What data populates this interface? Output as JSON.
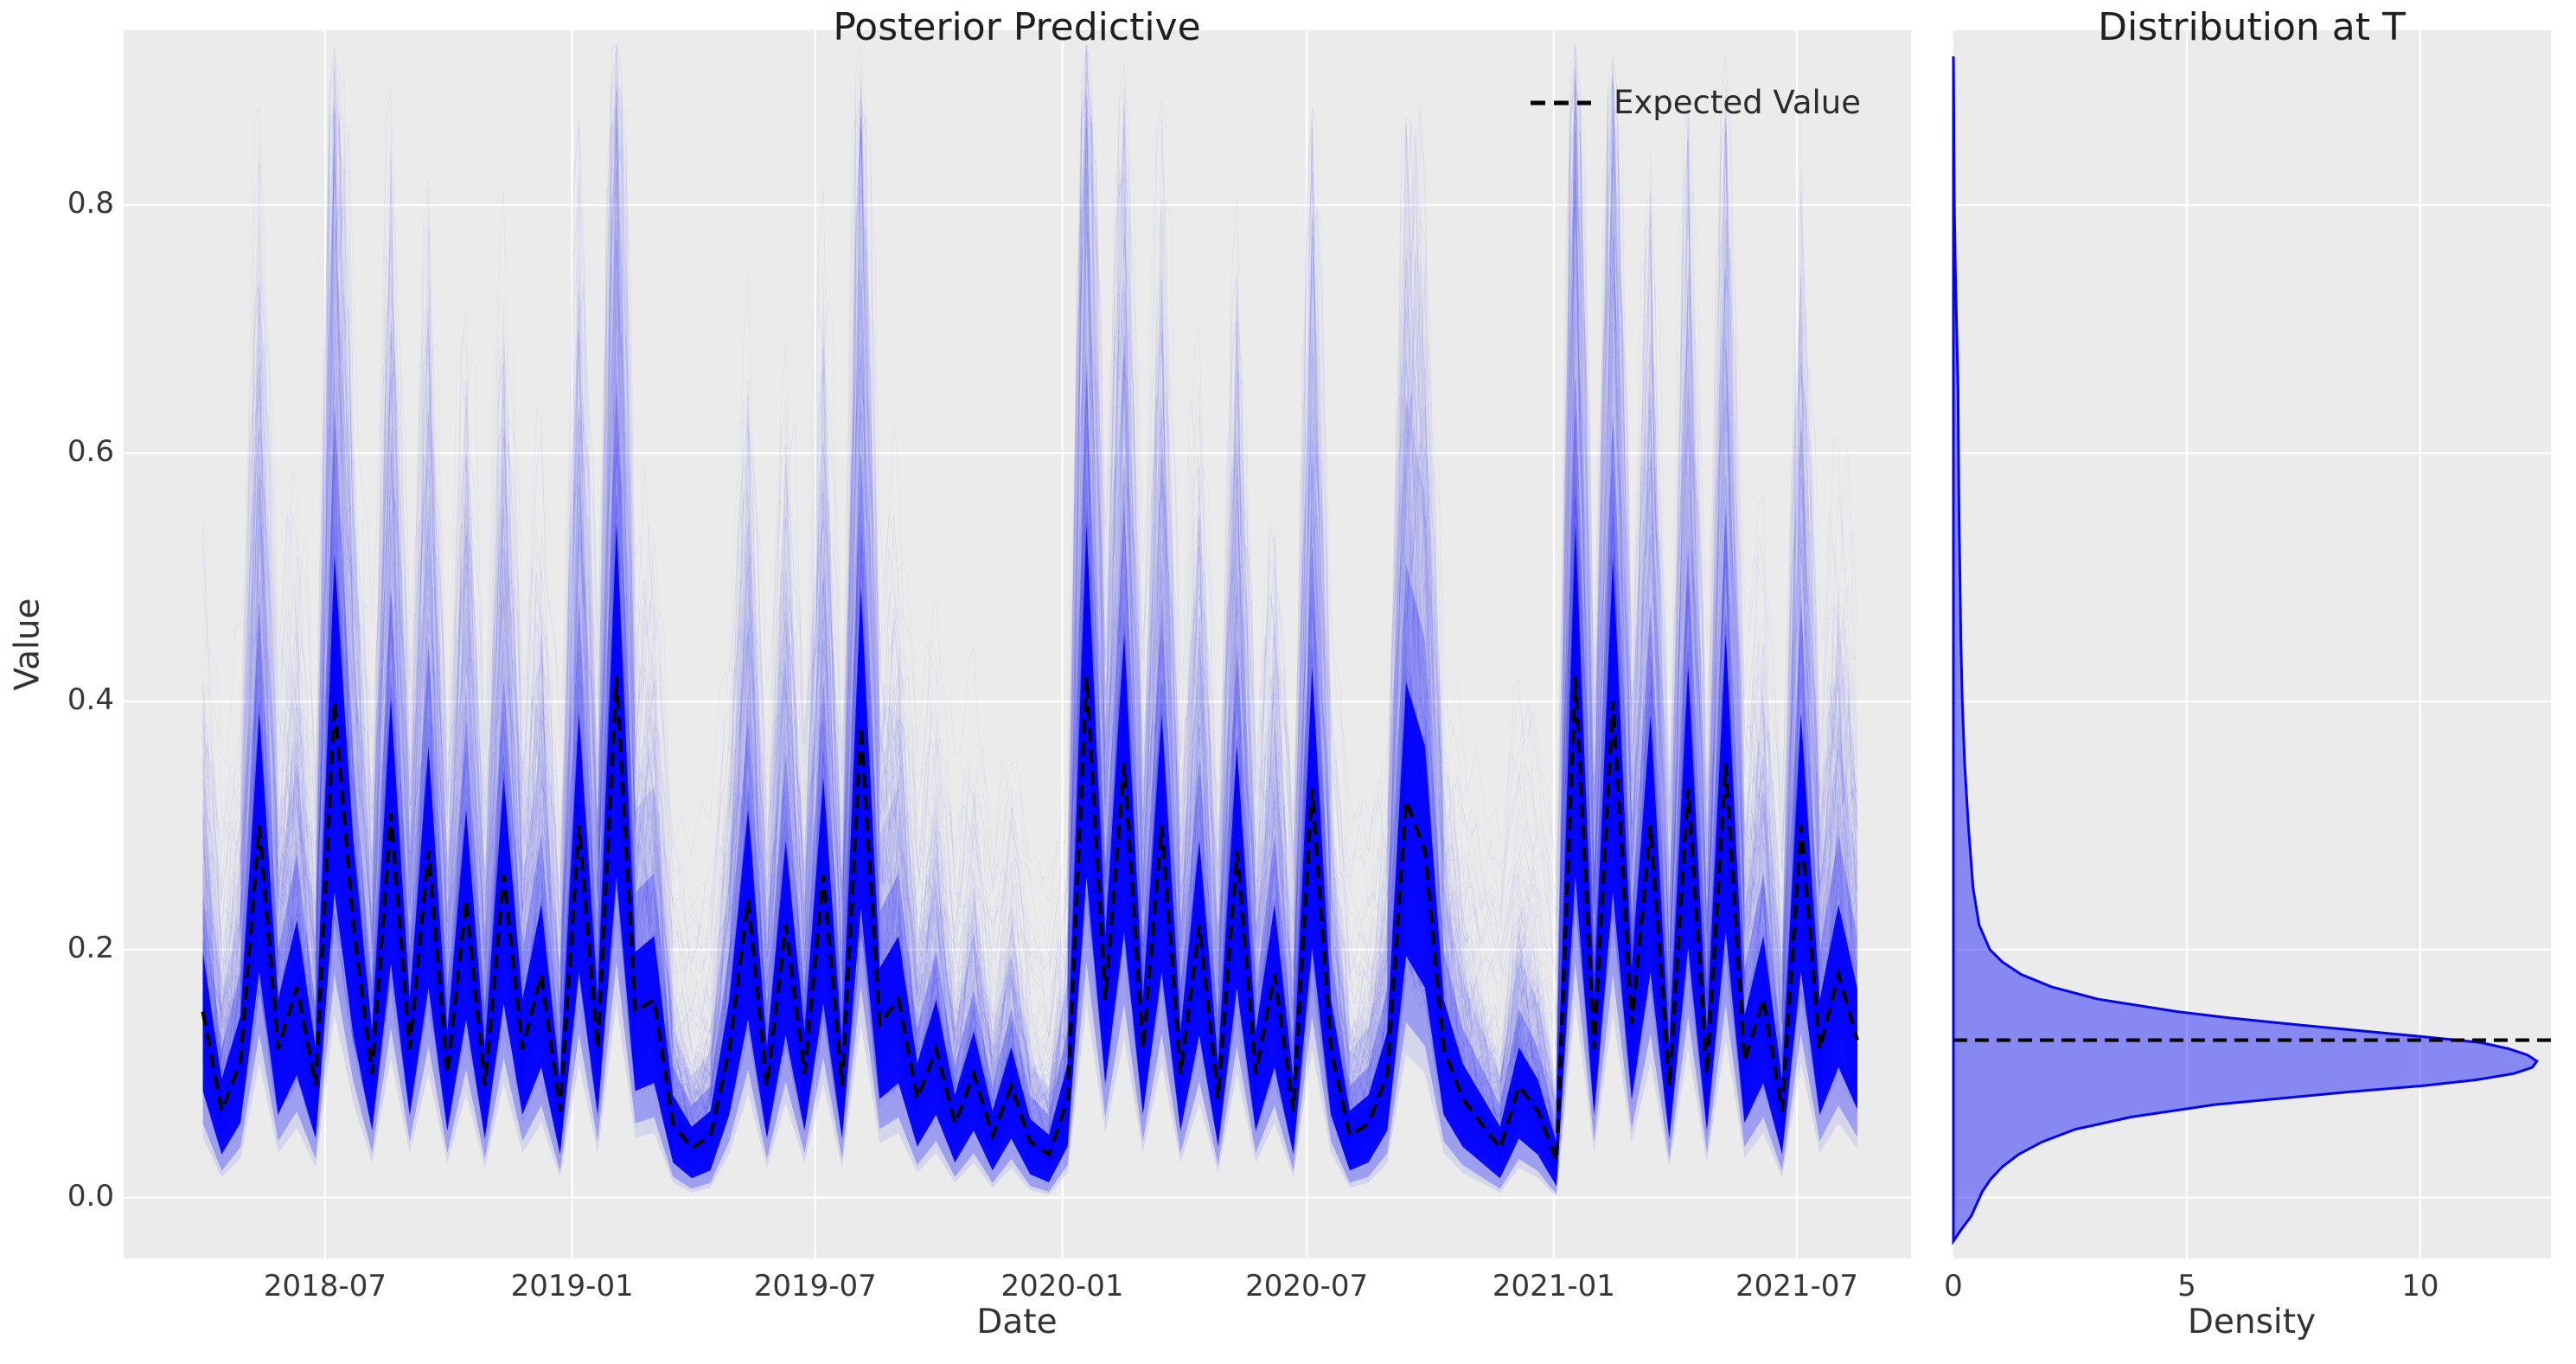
{
  "figure": {
    "background": "#ffffff",
    "axes_background": "#ebebeb",
    "grid_color": "#ffffff",
    "trace_color": "#0000ff",
    "expected_line_color": "#000000",
    "kde_fill_color": "#0000ff",
    "kde_line_color": "#0404f0"
  },
  "chart_data": [
    {
      "type": "line",
      "title": "Posterior Predictive",
      "xlabel": "Date",
      "ylabel": "Value",
      "legend_position": "upper right",
      "grid": true,
      "x_start_date": "2018-04-01",
      "x_step_days": 14,
      "xlim_days": [
        -59,
        1272
      ],
      "ylim": [
        -0.049,
        0.941
      ],
      "x_ticks": [
        {
          "label": "2018-07",
          "day": 91
        },
        {
          "label": "2019-01",
          "day": 275
        },
        {
          "label": "2019-07",
          "day": 456
        },
        {
          "label": "2020-01",
          "day": 640
        },
        {
          "label": "2020-07",
          "day": 822
        },
        {
          "label": "2021-01",
          "day": 1006
        },
        {
          "label": "2021-07",
          "day": 1187
        }
      ],
      "y_ticks": [
        {
          "label": "0.0",
          "value": 0.0
        },
        {
          "label": "0.2",
          "value": 0.2
        },
        {
          "label": "0.4",
          "value": 0.4
        },
        {
          "label": "0.6",
          "value": 0.6
        },
        {
          "label": "0.8",
          "value": 0.8
        }
      ],
      "series": [
        {
          "name": "Expected Value",
          "style": "dashed",
          "color": "#000000",
          "values": [
            0.15,
            0.07,
            0.11,
            0.3,
            0.12,
            0.17,
            0.09,
            0.4,
            0.22,
            0.1,
            0.31,
            0.12,
            0.28,
            0.1,
            0.24,
            0.09,
            0.26,
            0.12,
            0.18,
            0.07,
            0.3,
            0.12,
            0.42,
            0.15,
            0.16,
            0.06,
            0.04,
            0.05,
            0.12,
            0.24,
            0.09,
            0.22,
            0.1,
            0.26,
            0.09,
            0.38,
            0.14,
            0.16,
            0.08,
            0.12,
            0.06,
            0.1,
            0.05,
            0.09,
            0.045,
            0.035,
            0.08,
            0.42,
            0.16,
            0.35,
            0.12,
            0.3,
            0.1,
            0.22,
            0.08,
            0.28,
            0.1,
            0.18,
            0.07,
            0.33,
            0.12,
            0.05,
            0.06,
            0.1,
            0.32,
            0.28,
            0.12,
            0.08,
            0.06,
            0.04,
            0.09,
            0.07,
            0.03,
            0.42,
            0.12,
            0.4,
            0.14,
            0.3,
            0.09,
            0.33,
            0.1,
            0.35,
            0.11,
            0.16,
            0.07,
            0.3,
            0.12,
            0.18,
            0.127
          ]
        }
      ],
      "posterior_samples": {
        "count": 380,
        "seed": 20210808,
        "color": "#0000ff",
        "core_sigma": 0.13,
        "low_spread": 0.5,
        "high_spread": 0.8,
        "haze_offset_max": 0.22,
        "opacity_core": 0.08,
        "opacity_low": 0.07,
        "opacity_haze": 0.035
      }
    },
    {
      "type": "area",
      "title": "Distribution at T",
      "xlabel": "Density",
      "orientation": "horizontal",
      "xlim": [
        0,
        12.8
      ],
      "shared_ylim": [
        -0.049,
        0.941
      ],
      "expected_value": 0.127,
      "x_ticks": [
        {
          "label": "0",
          "value": 0
        },
        {
          "label": "5",
          "value": 5
        },
        {
          "label": "10",
          "value": 10
        }
      ],
      "kde": {
        "value": [
          -0.035,
          -0.025,
          -0.015,
          -0.005,
          0.005,
          0.015,
          0.025,
          0.035,
          0.045,
          0.055,
          0.065,
          0.075,
          0.085,
          0.09,
          0.095,
          0.1,
          0.105,
          0.11,
          0.115,
          0.12,
          0.125,
          0.13,
          0.135,
          0.14,
          0.145,
          0.15,
          0.16,
          0.17,
          0.18,
          0.19,
          0.2,
          0.22,
          0.25,
          0.3,
          0.35,
          0.4,
          0.45,
          0.5,
          0.55,
          0.6,
          0.65,
          0.7,
          0.75,
          0.8,
          0.85,
          0.9,
          0.92
        ],
        "density": [
          0.0,
          0.18,
          0.38,
          0.5,
          0.62,
          0.8,
          1.05,
          1.4,
          1.9,
          2.6,
          3.8,
          5.6,
          8.4,
          10.0,
          11.2,
          12.0,
          12.4,
          12.5,
          12.3,
          11.9,
          11.3,
          10.0,
          8.6,
          7.2,
          5.9,
          4.8,
          3.1,
          2.1,
          1.45,
          1.05,
          0.78,
          0.55,
          0.42,
          0.32,
          0.24,
          0.19,
          0.16,
          0.14,
          0.12,
          0.11,
          0.1,
          0.07,
          0.04,
          0.02,
          0.012,
          0.006,
          0.0
        ]
      }
    }
  ]
}
